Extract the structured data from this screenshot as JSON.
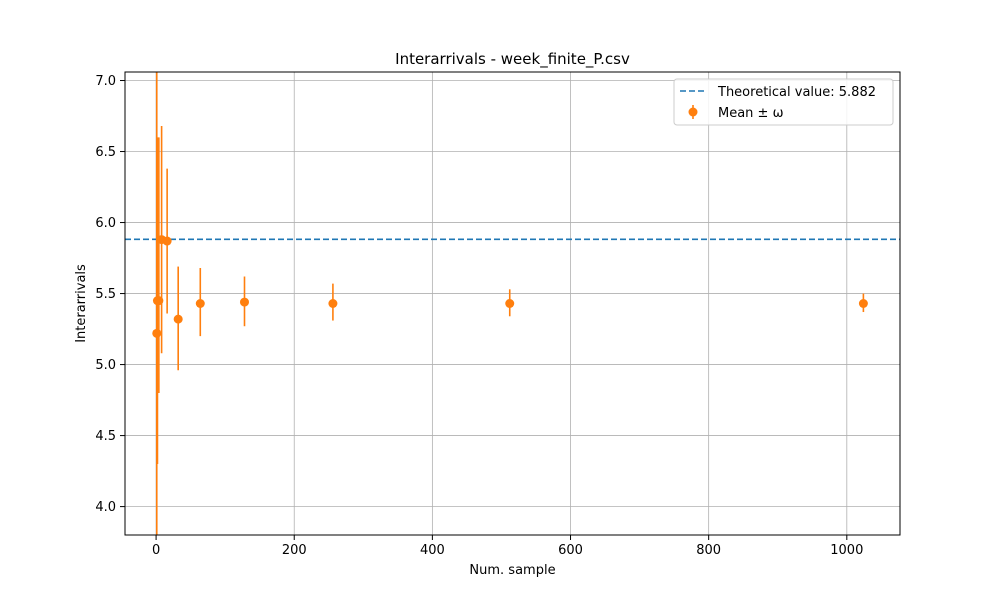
{
  "chart_data": {
    "type": "scatter",
    "title": "Interarrivals - week_finite_P.csv",
    "xlabel": "Num. sample",
    "ylabel": "Interarrivals",
    "xlim": [
      -45,
      1077
    ],
    "ylim": [
      3.8,
      7.06
    ],
    "xticks": [
      0,
      200,
      400,
      600,
      800,
      1000
    ],
    "xtick_labels": [
      "0",
      "200",
      "400",
      "600",
      "800",
      "1000"
    ],
    "yticks": [
      4.0,
      4.5,
      5.0,
      5.5,
      6.0,
      6.5,
      7.0
    ],
    "ytick_labels": [
      "4.0",
      "4.5",
      "5.0",
      "5.5",
      "6.0",
      "6.5",
      "7.0"
    ],
    "grid": true,
    "legend_position": "top-right",
    "theoretical": {
      "label": "Theoretical value: 5.882",
      "value": 5.882,
      "color": "#1f77b4",
      "style": "dashed"
    },
    "series": [
      {
        "name": "Mean ± ω",
        "color": "#ff7f0e",
        "points": [
          {
            "x": 1,
            "y": 5.22,
            "ylo": 3.8,
            "yhi": 7.06
          },
          {
            "x": 2,
            "y": 5.45,
            "ylo": 4.3,
            "yhi": 6.6
          },
          {
            "x": 4,
            "y": 5.45,
            "ylo": 4.8,
            "yhi": 6.6
          },
          {
            "x": 8,
            "y": 5.88,
            "ylo": 5.08,
            "yhi": 6.68
          },
          {
            "x": 16,
            "y": 5.87,
            "ylo": 5.36,
            "yhi": 6.38
          },
          {
            "x": 32,
            "y": 5.32,
            "ylo": 4.96,
            "yhi": 5.69
          },
          {
            "x": 64,
            "y": 5.43,
            "ylo": 5.2,
            "yhi": 5.68
          },
          {
            "x": 128,
            "y": 5.44,
            "ylo": 5.27,
            "yhi": 5.62
          },
          {
            "x": 256,
            "y": 5.43,
            "ylo": 5.31,
            "yhi": 5.57
          },
          {
            "x": 512,
            "y": 5.43,
            "ylo": 5.34,
            "yhi": 5.53
          },
          {
            "x": 1024,
            "y": 5.43,
            "ylo": 5.37,
            "yhi": 5.5
          }
        ]
      }
    ]
  }
}
